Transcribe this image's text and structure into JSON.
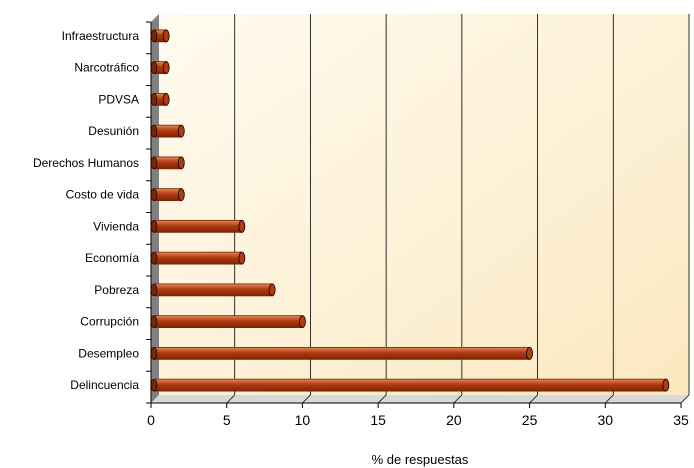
{
  "chart_data": {
    "type": "bar",
    "orientation": "horizontal",
    "categories": [
      "Infraestructura",
      "Narcotráfico",
      "PDVSA",
      "Desunión",
      "Derechos Humanos",
      "Costo de vida",
      "Vivienda",
      "Economía",
      "Pobreza",
      "Corrupción",
      "Desempleo",
      "Delincuencia"
    ],
    "values": [
      1,
      1,
      1,
      2,
      2,
      2,
      6,
      6,
      8,
      10,
      25,
      34
    ],
    "title": "",
    "xlabel": "% de respuestas",
    "ylabel": "",
    "xlim": [
      0,
      35
    ],
    "xticks": [
      "0",
      "5",
      "10",
      "15",
      "20",
      "25",
      "30",
      "35"
    ],
    "grid": true,
    "legend": "none",
    "colors": {
      "bar": "#b23a10",
      "bar_dark": "#7a2606",
      "bar_light": "#e08a5c",
      "plot_bg_light": "#fffbf0",
      "plot_bg_dark": "#fbe8c0",
      "wall": "#808080",
      "gridline": "#000000"
    }
  }
}
